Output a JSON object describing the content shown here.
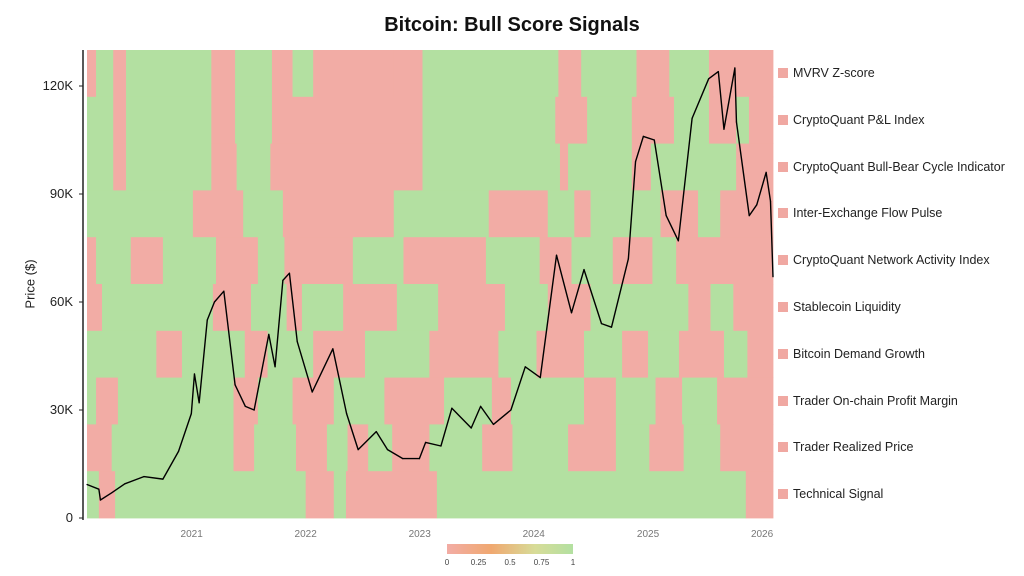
{
  "chart_data": {
    "type": "heatmap",
    "title": "Bitcoin: Bull Score Signals",
    "ylabel": "Price ($)",
    "yticks": [
      "0",
      "30K",
      "60K",
      "90K",
      "120K"
    ],
    "ylim": [
      0,
      130000
    ],
    "xlim": [
      "2020-02-01",
      "2026-02-05"
    ],
    "xticks": [
      "2021",
      "2022",
      "2023",
      "2024",
      "2025",
      "2026"
    ],
    "colors": {
      "bear": "#f2aca5",
      "bull": "#b3e0a1",
      "mid": "#f0a870",
      "line": "#000000"
    },
    "colorbar": {
      "ticks": [
        "0",
        "0.25",
        "0.5",
        "0.75",
        "1"
      ]
    },
    "rows": [
      {
        "name": "MVRV Z-score",
        "segments": [
          [
            "2020-02-01",
            0
          ],
          [
            "2020-03-01",
            1
          ],
          [
            "2020-04-25",
            0
          ],
          [
            "2020-06-05",
            1
          ],
          [
            "2021-03-05",
            0
          ],
          [
            "2021-05-20",
            1
          ],
          [
            "2021-09-15",
            0
          ],
          [
            "2021-11-20",
            1
          ],
          [
            "2022-01-25",
            0
          ],
          [
            "2022-10-10",
            0
          ],
          [
            "2023-01-10",
            1
          ],
          [
            "2024-03-20",
            0
          ],
          [
            "2024-06-01",
            1
          ],
          [
            "2024-11-25",
            0
          ],
          [
            "2025-03-10",
            1
          ],
          [
            "2025-07-15",
            0
          ],
          [
            "2025-10-10",
            0
          ],
          [
            "2026-02-05",
            0
          ]
        ]
      },
      {
        "name": "CryptoQuant P&L Index",
        "segments": [
          [
            "2020-02-01",
            1
          ],
          [
            "2020-04-25",
            0
          ],
          [
            "2020-06-05",
            1
          ],
          [
            "2021-03-05",
            0
          ],
          [
            "2021-05-20",
            1
          ],
          [
            "2021-09-15",
            0
          ],
          [
            "2022-01-25",
            0
          ],
          [
            "2023-01-10",
            1
          ],
          [
            "2024-03-10",
            0
          ],
          [
            "2024-06-20",
            1
          ],
          [
            "2024-11-10",
            0
          ],
          [
            "2025-03-25",
            1
          ],
          [
            "2025-07-15",
            0
          ],
          [
            "2025-10-10",
            1
          ],
          [
            "2025-11-20",
            0
          ],
          [
            "2026-02-05",
            0
          ]
        ]
      },
      {
        "name": "CryptoQuant Bull-Bear Cycle Indicator",
        "segments": [
          [
            "2020-02-01",
            1
          ],
          [
            "2020-04-25",
            0
          ],
          [
            "2020-06-05",
            1
          ],
          [
            "2021-03-05",
            0
          ],
          [
            "2021-05-25",
            1
          ],
          [
            "2021-09-10",
            0
          ],
          [
            "2023-01-10",
            1
          ],
          [
            "2024-03-25",
            0
          ],
          [
            "2024-04-20",
            1
          ],
          [
            "2024-11-10",
            0
          ],
          [
            "2025-01-10",
            1
          ],
          [
            "2025-10-10",
            0
          ],
          [
            "2026-02-05",
            0
          ]
        ]
      },
      {
        "name": "Inter-Exchange Flow Pulse",
        "segments": [
          [
            "2020-02-01",
            1
          ],
          [
            "2021-01-05",
            0
          ],
          [
            "2021-06-15",
            1
          ],
          [
            "2021-10-20",
            0
          ],
          [
            "2022-10-10",
            1
          ],
          [
            "2023-08-10",
            0
          ],
          [
            "2024-02-15",
            1
          ],
          [
            "2024-05-10",
            0
          ],
          [
            "2024-07-01",
            1
          ],
          [
            "2025-02-10",
            0
          ],
          [
            "2025-06-10",
            1
          ],
          [
            "2025-08-20",
            0
          ],
          [
            "2026-02-05",
            0
          ]
        ]
      },
      {
        "name": "CryptoQuant Network Activity Index",
        "segments": [
          [
            "2020-02-01",
            0
          ],
          [
            "2020-03-01",
            1
          ],
          [
            "2020-06-20",
            0
          ],
          [
            "2020-10-01",
            1
          ],
          [
            "2021-03-20",
            0
          ],
          [
            "2021-08-01",
            1
          ],
          [
            "2021-10-25",
            0
          ],
          [
            "2022-06-01",
            1
          ],
          [
            "2022-11-10",
            0
          ],
          [
            "2023-08-01",
            1
          ],
          [
            "2024-01-20",
            0
          ],
          [
            "2024-05-01",
            1
          ],
          [
            "2024-09-10",
            0
          ],
          [
            "2025-01-15",
            1
          ],
          [
            "2025-04-01",
            0
          ],
          [
            "2026-02-05",
            0
          ]
        ]
      },
      {
        "name": "Stablecoin Liquidity",
        "segments": [
          [
            "2020-02-01",
            0
          ],
          [
            "2020-03-20",
            1
          ],
          [
            "2021-03-10",
            0
          ],
          [
            "2021-07-10",
            1
          ],
          [
            "2021-11-01",
            0
          ],
          [
            "2021-12-20",
            1
          ],
          [
            "2022-05-01",
            0
          ],
          [
            "2022-10-20",
            1
          ],
          [
            "2023-03-01",
            0
          ],
          [
            "2023-10-01",
            1
          ],
          [
            "2024-02-15",
            0
          ],
          [
            "2024-07-01",
            1
          ],
          [
            "2025-05-10",
            0
          ],
          [
            "2025-07-20",
            1
          ],
          [
            "2025-10-01",
            0
          ],
          [
            "2026-02-05",
            0
          ]
        ]
      },
      {
        "name": "Bitcoin Demand Growth",
        "segments": [
          [
            "2020-02-01",
            1
          ],
          [
            "2020-09-10",
            0
          ],
          [
            "2020-12-01",
            1
          ],
          [
            "2021-06-20",
            0
          ],
          [
            "2021-09-01",
            1
          ],
          [
            "2022-01-25",
            0
          ],
          [
            "2022-07-10",
            1
          ],
          [
            "2023-02-01",
            0
          ],
          [
            "2023-09-10",
            1
          ],
          [
            "2024-01-10",
            0
          ],
          [
            "2024-06-10",
            1
          ],
          [
            "2024-10-10",
            0
          ],
          [
            "2025-01-01",
            1
          ],
          [
            "2025-04-10",
            0
          ],
          [
            "2025-09-01",
            1
          ],
          [
            "2025-11-15",
            0
          ],
          [
            "2026-02-05",
            0
          ]
        ]
      },
      {
        "name": "Trader On-chain Profit Margin",
        "segments": [
          [
            "2020-02-01",
            1
          ],
          [
            "2020-03-01",
            0
          ],
          [
            "2020-05-10",
            1
          ],
          [
            "2021-05-15",
            0
          ],
          [
            "2021-08-01",
            1
          ],
          [
            "2021-11-20",
            0
          ],
          [
            "2022-04-01",
            1
          ],
          [
            "2022-09-10",
            0
          ],
          [
            "2023-03-20",
            1
          ],
          [
            "2023-08-20",
            0
          ],
          [
            "2023-10-20",
            1
          ],
          [
            "2024-06-10",
            0
          ],
          [
            "2024-09-20",
            1
          ],
          [
            "2025-01-25",
            0
          ],
          [
            "2025-04-20",
            1
          ],
          [
            "2025-08-10",
            0
          ],
          [
            "2026-02-05",
            0
          ]
        ]
      },
      {
        "name": "Trader Realized Price",
        "segments": [
          [
            "2020-02-01",
            0
          ],
          [
            "2020-04-20",
            1
          ],
          [
            "2021-05-15",
            0
          ],
          [
            "2021-07-20",
            1
          ],
          [
            "2021-12-01",
            0
          ],
          [
            "2022-03-10",
            1
          ],
          [
            "2022-05-15",
            0
          ],
          [
            "2022-07-20",
            1
          ],
          [
            "2022-10-05",
            0
          ],
          [
            "2023-02-01",
            1
          ],
          [
            "2023-07-20",
            0
          ],
          [
            "2023-10-25",
            1
          ],
          [
            "2024-04-20",
            0
          ],
          [
            "2024-09-20",
            1
          ],
          [
            "2025-01-05",
            0
          ],
          [
            "2025-04-25",
            1
          ],
          [
            "2025-08-20",
            0
          ],
          [
            "2026-02-05",
            0
          ]
        ]
      },
      {
        "name": "Technical Signal",
        "segments": [
          [
            "2020-02-01",
            1
          ],
          [
            "2020-03-10",
            0
          ],
          [
            "2020-05-01",
            1
          ],
          [
            "2022-01-01",
            0
          ],
          [
            "2022-04-01",
            1
          ],
          [
            "2022-05-10",
            0
          ],
          [
            "2023-02-25",
            1
          ],
          [
            "2025-11-10",
            0
          ],
          [
            "2026-02-05",
            0
          ]
        ]
      }
    ],
    "price_series": [
      [
        "2020-02-01",
        9300
      ],
      [
        "2020-03-10",
        8000
      ],
      [
        "2020-03-15",
        5000
      ],
      [
        "2020-04-20",
        7000
      ],
      [
        "2020-06-01",
        9500
      ],
      [
        "2020-08-01",
        11500
      ],
      [
        "2020-10-01",
        10800
      ],
      [
        "2020-11-20",
        18500
      ],
      [
        "2020-12-31",
        29000
      ],
      [
        "2021-01-10",
        40000
      ],
      [
        "2021-01-25",
        32000
      ],
      [
        "2021-02-20",
        55000
      ],
      [
        "2021-03-15",
        60000
      ],
      [
        "2021-04-14",
        63000
      ],
      [
        "2021-05-20",
        37000
      ],
      [
        "2021-06-22",
        31000
      ],
      [
        "2021-07-20",
        30000
      ],
      [
        "2021-09-05",
        51000
      ],
      [
        "2021-09-25",
        42000
      ],
      [
        "2021-10-20",
        66000
      ],
      [
        "2021-11-10",
        68000
      ],
      [
        "2021-12-05",
        49000
      ],
      [
        "2022-01-22",
        35000
      ],
      [
        "2022-03-29",
        47000
      ],
      [
        "2022-05-12",
        29000
      ],
      [
        "2022-06-18",
        19000
      ],
      [
        "2022-08-15",
        24000
      ],
      [
        "2022-09-20",
        19000
      ],
      [
        "2022-11-08",
        16500
      ],
      [
        "2022-12-31",
        16500
      ],
      [
        "2023-01-20",
        21000
      ],
      [
        "2023-03-10",
        20000
      ],
      [
        "2023-04-14",
        30500
      ],
      [
        "2023-06-15",
        25000
      ],
      [
        "2023-07-15",
        31000
      ],
      [
        "2023-08-25",
        26000
      ],
      [
        "2023-10-20",
        30000
      ],
      [
        "2023-12-05",
        42000
      ],
      [
        "2024-01-22",
        39000
      ],
      [
        "2024-03-14",
        73000
      ],
      [
        "2024-05-01",
        57000
      ],
      [
        "2024-06-10",
        69000
      ],
      [
        "2024-08-05",
        54000
      ],
      [
        "2024-09-06",
        53000
      ],
      [
        "2024-10-30",
        72000
      ],
      [
        "2024-11-22",
        99000
      ],
      [
        "2024-12-17",
        106000
      ],
      [
        "2025-01-21",
        105000
      ],
      [
        "2025-02-28",
        84000
      ],
      [
        "2025-04-08",
        77000
      ],
      [
        "2025-05-22",
        111000
      ],
      [
        "2025-07-14",
        122000
      ],
      [
        "2025-08-14",
        124000
      ],
      [
        "2025-09-01",
        108000
      ],
      [
        "2025-10-06",
        125000
      ],
      [
        "2025-10-11",
        110000
      ],
      [
        "2025-11-21",
        84000
      ],
      [
        "2025-12-15",
        87000
      ],
      [
        "2026-01-14",
        96000
      ],
      [
        "2026-01-28",
        88000
      ],
      [
        "2026-02-05",
        67000
      ]
    ]
  }
}
